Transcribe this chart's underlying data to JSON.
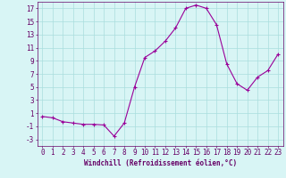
{
  "x": [
    0,
    1,
    2,
    3,
    4,
    5,
    6,
    7,
    8,
    9,
    10,
    11,
    12,
    13,
    14,
    15,
    16,
    17,
    18,
    19,
    20,
    21,
    22,
    23
  ],
  "y": [
    0.5,
    0.3,
    -0.3,
    -0.5,
    -0.7,
    -0.7,
    -0.8,
    -2.5,
    -0.5,
    5.0,
    9.5,
    10.5,
    12.0,
    14.0,
    17.0,
    17.5,
    17.0,
    14.5,
    8.5,
    5.5,
    4.5,
    6.5,
    7.5,
    10.0
  ],
  "xlim": [
    -0.5,
    23.5
  ],
  "ylim": [
    -4,
    18
  ],
  "yticks": [
    -3,
    -1,
    1,
    3,
    5,
    7,
    9,
    11,
    13,
    15,
    17
  ],
  "xticks": [
    0,
    1,
    2,
    3,
    4,
    5,
    6,
    7,
    8,
    9,
    10,
    11,
    12,
    13,
    14,
    15,
    16,
    17,
    18,
    19,
    20,
    21,
    22,
    23
  ],
  "xlabel": "Windchill (Refroidissement éolien,°C)",
  "line_color": "#990099",
  "marker": "+",
  "bg_color": "#d8f5f5",
  "grid_color": "#aadddd",
  "text_color": "#660066",
  "label_fontsize": 5.5,
  "tick_fontsize": 5.5
}
